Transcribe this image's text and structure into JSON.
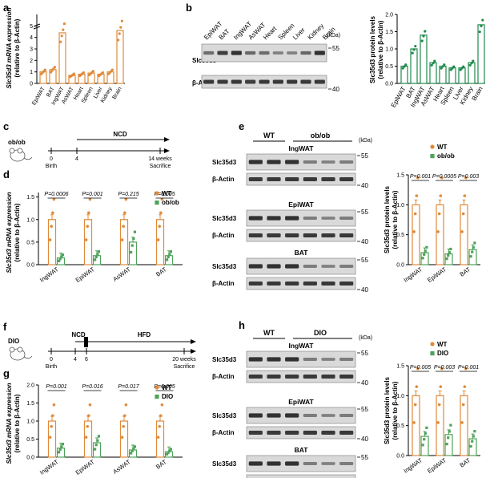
{
  "colors": {
    "orange": "#e08a3a",
    "green": "#1f8a4c",
    "green_mid": "#4ea35a",
    "axis": "#000000",
    "blot_bg": "#d9d9d9",
    "band": "#1a1a1a"
  },
  "panel_letters": {
    "a": "a",
    "b": "b",
    "c": "c",
    "d": "d",
    "e": "e",
    "f": "f",
    "g": "g",
    "h": "h"
  },
  "tissues": [
    "EpiWAT",
    "BAT",
    "IngWAT",
    "AsWAT",
    "Heart",
    "Spleen",
    "Liver",
    "Kidney",
    "Brain"
  ],
  "fat_depots3": [
    "IngWAT",
    "EpiWAT",
    "BAT"
  ],
  "fat_depots4_ob": [
    "IngWAT",
    "EpiWAT",
    "AsWAT",
    "BAT"
  ],
  "fat_depots4_dio": [
    "IngWAT",
    "EpiWAT",
    "AsWAT",
    "BAT"
  ],
  "labels": {
    "a_ylabel_1": "Slc35d3 mRNA expression",
    "a_ylabel_2": "(relative to β-Actin)",
    "b_ylabel_1": "Slc35d3 protein levels",
    "b_ylabel_2": "(relative to β-Actin)",
    "kda": "(kDa)",
    "slc35d3": "Slc35d3",
    "bactin": "β-Actin",
    "mw55": "55",
    "mw40": "40",
    "wt": "WT",
    "obob": "ob/ob",
    "dio": "DIO",
    "ingwat": "IngWAT",
    "epiwat": "EpiWAT",
    "bat": "BAT"
  },
  "timeline_c": {
    "model": "ob/ob",
    "diet": "NCD",
    "t0": "0",
    "t4": "4",
    "end": "14 weeks",
    "birth": "Birth",
    "sacrifice": "Sacrifice"
  },
  "timeline_f": {
    "model": "DIO",
    "diet1": "NCD",
    "diet2": "HFD",
    "t0": "0",
    "t4": "4",
    "t6": "6",
    "end": "20 weeks",
    "birth": "Birth",
    "sacrifice": "Sacrifice"
  },
  "chart_data": [
    {
      "panel": "a",
      "type": "bar",
      "categories": [
        "EpiWAT",
        "BAT",
        "IngWAT",
        "AsWAT",
        "Heart",
        "Spleen",
        "Liver",
        "Kidney",
        "Brain"
      ],
      "values": [
        1.0,
        1.2,
        4.4,
        0.7,
        0.8,
        0.9,
        0.8,
        1.0,
        4.6
      ],
      "ylim": [
        0,
        6
      ],
      "yticks": [
        "0",
        "1",
        "2",
        "3",
        "4",
        "5"
      ],
      "ylabel": "Slc35d3 mRNA expression (relative to β-Actin)",
      "axis_break": true
    },
    {
      "panel": "b",
      "type": "bar",
      "categories": [
        "EpiWAT",
        "BAT",
        "IngWAT",
        "AsWAT",
        "Heart",
        "Spleen",
        "Liver",
        "Kidney",
        "Brain"
      ],
      "values": [
        0.5,
        1.0,
        1.4,
        0.6,
        0.5,
        0.45,
        0.45,
        0.6,
        1.7
      ],
      "ylim": [
        0,
        2.0
      ],
      "yticks": [
        "0.0",
        "0.5",
        "1.0",
        "1.5",
        "2.0"
      ],
      "ylabel": "Slc35d3 protein levels (relative to β-Actin)"
    },
    {
      "panel": "d",
      "type": "bar",
      "categories": [
        "IngWAT",
        "EpiWAT",
        "AsWAT",
        "BAT"
      ],
      "series": [
        {
          "name": "WT",
          "values": [
            1.0,
            1.0,
            1.0,
            1.0
          ]
        },
        {
          "name": "ob/ob",
          "values": [
            0.15,
            0.2,
            0.5,
            0.2
          ]
        }
      ],
      "pvalues": [
        "P=0.0006",
        "P=0.001",
        "P=0.215",
        "P=0.005"
      ],
      "ylim": [
        0,
        1.6
      ],
      "yticks": [
        "0.0",
        "0.5",
        "1.0",
        "1.5"
      ],
      "ylabel": "Slc35d3 mRNA expression (relative to β-Actin)"
    },
    {
      "panel": "e",
      "type": "bar",
      "categories": [
        "IngWAT",
        "EpiWAT",
        "BAT"
      ],
      "series": [
        {
          "name": "WT",
          "values": [
            1.0,
            1.0,
            1.0
          ]
        },
        {
          "name": "ob/ob",
          "values": [
            0.2,
            0.18,
            0.25
          ]
        }
      ],
      "pvalues": [
        "P=0.001",
        "P=0.0005",
        "P=0.003"
      ],
      "ylim": [
        0,
        1.5
      ],
      "yticks": [
        "0.0",
        "0.5",
        "1.0",
        "1.5"
      ],
      "ylabel": "Slc35d3 protein levels (relative to β-Actin)"
    },
    {
      "panel": "g",
      "type": "bar",
      "categories": [
        "IngWAT",
        "EpiWAT",
        "AsWAT",
        "BAT"
      ],
      "series": [
        {
          "name": "WT",
          "values": [
            1.0,
            1.0,
            1.0,
            1.0
          ]
        },
        {
          "name": "DIO",
          "values": [
            0.25,
            0.4,
            0.2,
            0.15
          ]
        }
      ],
      "pvalues": [
        "P=0.001",
        "P=0.016",
        "P=0.017",
        "P=0.005"
      ],
      "ylim": [
        0,
        2.0
      ],
      "yticks": [
        "0.0",
        "0.5",
        "1.0",
        "1.5",
        "2.0"
      ],
      "ylabel": "Slc35d3 mRNA expression (relative to β-Actin)"
    },
    {
      "panel": "h",
      "type": "bar",
      "categories": [
        "IngWAT",
        "EpiWAT",
        "BAT"
      ],
      "series": [
        {
          "name": "WT",
          "values": [
            1.0,
            1.0,
            1.0
          ]
        },
        {
          "name": "DIO",
          "values": [
            0.32,
            0.35,
            0.28
          ]
        }
      ],
      "pvalues": [
        "P=0.005",
        "P=0.003",
        "P=0.001"
      ],
      "ylim": [
        0,
        1.5
      ],
      "yticks": [
        "0.0",
        "0.5",
        "1.0",
        "1.5"
      ],
      "ylabel": "Slc35d3 protein levels (relative to β-Actin)"
    }
  ]
}
